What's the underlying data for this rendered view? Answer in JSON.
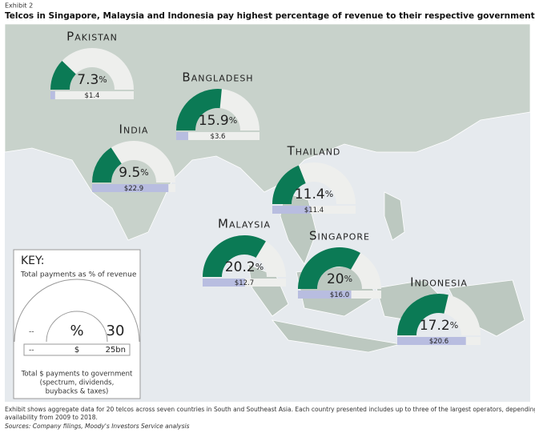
{
  "exhibit": "Exhibit 2",
  "title": "Telcos in Singapore, Malaysia and Indonesia pay highest percentage of revenue to their respective governments",
  "percent_unit": "%",
  "countries": [
    {
      "name": "Pakistan",
      "percent": 7.3,
      "payment": 1.4,
      "payment_label": "$1.4"
    },
    {
      "name": "Bangladesh",
      "percent": 15.9,
      "payment": 3.6,
      "payment_label": "$3.6"
    },
    {
      "name": "India",
      "percent": 9.5,
      "payment": 22.9,
      "payment_label": "$22.9"
    },
    {
      "name": "Thailand",
      "percent": 11.4,
      "payment": 11.4,
      "payment_label": "$11.4"
    },
    {
      "name": "Malaysia",
      "percent": 20.2,
      "payment": 12.7,
      "payment_label": "$12.7"
    },
    {
      "name": "Singapore",
      "percent": 20.0,
      "payment": 16.0,
      "payment_label": "$16.0"
    },
    {
      "name": "Indonesia",
      "percent": 17.2,
      "payment": 20.6,
      "payment_label": "$20.6"
    }
  ],
  "key": {
    "title": "KEY:",
    "gauge_label": "Total payments as % of revenue",
    "dash_1": "--",
    "percent_symbol": "%",
    "gauge_max": 30,
    "dash_2": "--",
    "dollar_symbol": "$",
    "bar_max": {
      "value": 25,
      "label": "25bn"
    },
    "bar_label_1": "Total $ payments to government",
    "bar_label_2": "(spectrum, dividends,",
    "bar_label_3": "buybacks & taxes)"
  },
  "footnote_1": "Exhibit shows aggregate data for 20 telcos across seven countries in South and Southeast Asia. Each country presented includes up to three of the largest operators, depending on data",
  "footnote_2": "availability from 2009 to 2018.",
  "sources": "Sources: Company filings, Moody's Investors Service analysis"
}
